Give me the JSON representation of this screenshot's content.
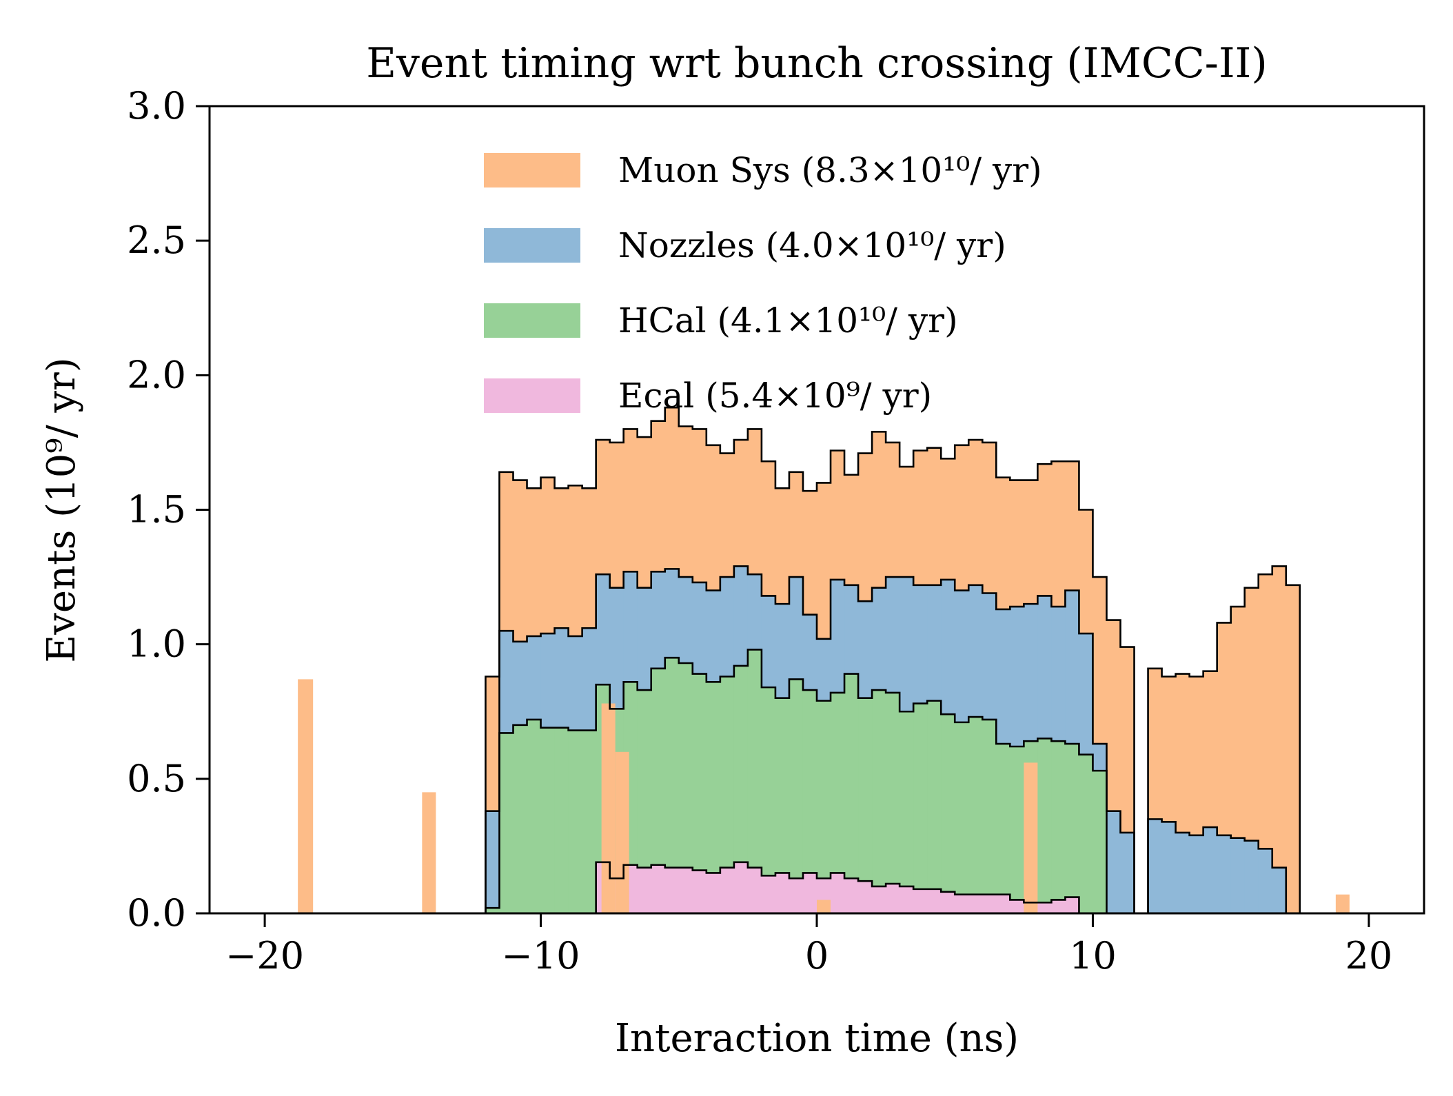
{
  "chart_data": {
    "type": "histogram",
    "stacked": true,
    "title": "Event timing wrt bunch crossing (IMCC-II)",
    "xlabel": "Interaction time (ns)",
    "ylabel": "Events (10⁹/ yr)",
    "xlim": [
      -22,
      22
    ],
    "ylim": [
      0,
      3.0
    ],
    "grid": false,
    "legend_position": "top-center",
    "x_ticks": [
      -20,
      -10,
      0,
      10,
      20
    ],
    "x_tick_labels": [
      "−20",
      "−10",
      "0",
      "10",
      "20"
    ],
    "y_ticks": [
      0,
      0.5,
      1.0,
      1.5,
      2.0,
      2.5,
      3.0
    ],
    "y_tick_labels": [
      "0.0",
      "0.5",
      "1.0",
      "1.5",
      "2.0",
      "2.5",
      "3.0"
    ],
    "bins": {
      "start": -20,
      "width": 0.5,
      "count": 80
    },
    "series": [
      {
        "name": "Ecal (5.4×10⁹/ yr)",
        "color": "#f0b8de",
        "values": [
          0,
          0,
          0,
          0,
          0,
          0,
          0,
          0,
          0,
          0,
          0,
          0,
          0,
          0,
          0,
          0,
          0,
          0,
          0,
          0,
          0,
          0,
          0,
          0,
          0.19,
          0.13,
          0.18,
          0.17,
          0.18,
          0.17,
          0.17,
          0.16,
          0.15,
          0.17,
          0.19,
          0.17,
          0.14,
          0.15,
          0.13,
          0.15,
          0.13,
          0.15,
          0.13,
          0.12,
          0.1,
          0.11,
          0.1,
          0.09,
          0.09,
          0.08,
          0.07,
          0.07,
          0.07,
          0.07,
          0.05,
          0.04,
          0.04,
          0.05,
          0.06,
          0.0,
          0,
          0,
          0,
          0,
          0,
          0,
          0,
          0,
          0,
          0,
          0,
          0,
          0,
          0,
          0,
          0,
          0,
          0,
          0,
          0
        ]
      },
      {
        "name": "HCal (4.1×10¹⁰/ yr)",
        "color": "#97d197",
        "values": [
          0,
          0,
          0,
          0,
          0,
          0,
          0,
          0,
          0,
          0,
          0,
          0,
          0,
          0,
          0,
          0,
          0.02,
          0.67,
          0.7,
          0.72,
          0.69,
          0.69,
          0.68,
          0.68,
          0.66,
          0.63,
          0.68,
          0.66,
          0.73,
          0.78,
          0.76,
          0.73,
          0.71,
          0.71,
          0.73,
          0.81,
          0.7,
          0.65,
          0.74,
          0.68,
          0.66,
          0.67,
          0.76,
          0.68,
          0.73,
          0.71,
          0.65,
          0.69,
          0.7,
          0.66,
          0.64,
          0.66,
          0.65,
          0.56,
          0.57,
          0.6,
          0.61,
          0.59,
          0.57,
          0.59,
          0.53,
          0.0,
          0,
          0,
          0,
          0,
          0,
          0,
          0,
          0,
          0,
          0,
          0,
          0,
          0,
          0,
          0,
          0,
          0,
          0
        ]
      },
      {
        "name": "Nozzles (4.0×10¹⁰/ yr)",
        "color": "#8fb8d8",
        "values": [
          0,
          0,
          0,
          0,
          0,
          0,
          0,
          0,
          0,
          0,
          0,
          0,
          0,
          0,
          0,
          0,
          0.36,
          0.38,
          0.31,
          0.31,
          0.35,
          0.37,
          0.35,
          0.38,
          0.41,
          0.45,
          0.41,
          0.38,
          0.36,
          0.33,
          0.32,
          0.34,
          0.34,
          0.37,
          0.37,
          0.28,
          0.34,
          0.35,
          0.38,
          0.28,
          0.23,
          0.42,
          0.33,
          0.36,
          0.38,
          0.43,
          0.5,
          0.44,
          0.43,
          0.5,
          0.49,
          0.49,
          0.47,
          0.5,
          0.52,
          0.51,
          0.53,
          0.5,
          0.57,
          0.45,
          0.1,
          0.38,
          0.3,
          0.0,
          0.35,
          0.34,
          0.3,
          0.29,
          0.32,
          0.29,
          0.28,
          0.27,
          0.24,
          0.17,
          0.0,
          0,
          0,
          0,
          0,
          0
        ]
      },
      {
        "name": "Muon Sys (8.3×10¹⁰/ yr)",
        "color": "#fdbc88",
        "values": [
          0,
          0,
          0,
          0,
          0,
          0,
          0,
          0,
          0,
          0,
          0,
          0,
          0,
          0,
          0,
          0,
          0.5,
          0.59,
          0.6,
          0.55,
          0.58,
          0.52,
          0.56,
          0.52,
          0.5,
          0.54,
          0.53,
          0.56,
          0.56,
          0.6,
          0.56,
          0.57,
          0.54,
          0.46,
          0.47,
          0.54,
          0.5,
          0.43,
          0.39,
          0.46,
          0.58,
          0.48,
          0.41,
          0.55,
          0.58,
          0.5,
          0.41,
          0.5,
          0.51,
          0.45,
          0.54,
          0.54,
          0.56,
          0.49,
          0.47,
          0.46,
          0.49,
          0.54,
          0.48,
          0.46,
          0.62,
          0.71,
          0.69,
          0.0,
          0.56,
          0.54,
          0.59,
          0.59,
          0.58,
          0.79,
          0.86,
          0.94,
          1.02,
          1.12,
          1.22,
          0,
          0,
          0,
          0,
          0
        ]
      }
    ],
    "rendered_edges": [
      {
        "x0": -18.8,
        "x1": -18.25,
        "muon": 0.87
      },
      {
        "x0": -14.3,
        "x1": -13.8,
        "muon": 0.45
      },
      {
        "x0": -7.8,
        "x1": -7.3,
        "muon": 0.78
      },
      {
        "x0": -7.3,
        "x1": -6.8,
        "muon": 0.6
      },
      {
        "x0": 0.0,
        "x1": 0.5,
        "muon": 0.05
      },
      {
        "x0": 7.5,
        "x1": 8.0,
        "muon": 0.56
      },
      {
        "x0": 18.8,
        "x1": 19.3,
        "muon": 0.07
      }
    ]
  }
}
